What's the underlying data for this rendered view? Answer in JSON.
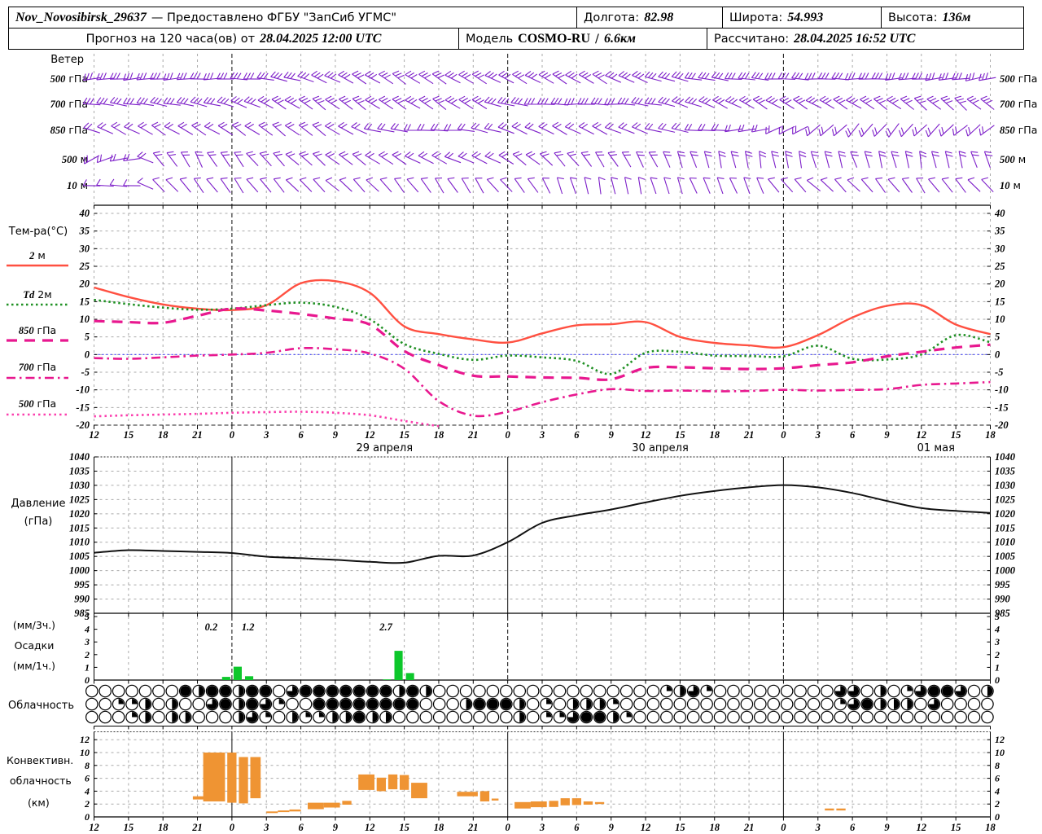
{
  "header": {
    "station": "Nov_Novosibirsk_29637",
    "provider": "— Предоставлено ФГБУ \"ЗапСиб УГМС\"",
    "lon_label": "Долгота:",
    "lon": "82.98",
    "lat_label": "Широта:",
    "lat": "54.993",
    "alt_label": "Высота:",
    "alt": "136м",
    "forecast_label": "Прогноз на 120 часа(ов) от",
    "forecast_time": "28.04.2025 12:00 UTC",
    "model_label": "Модель",
    "model_name": "COSMO-RU",
    "model_sep": "/",
    "model_res": "6.6км",
    "calc_label": "Рассчитано:",
    "calc_time": "28.04.2025 16:52 UTC"
  },
  "axis": {
    "hour_ticks": [
      "12",
      "15",
      "18",
      "21",
      "0",
      "3",
      "6",
      "9",
      "12",
      "15",
      "18",
      "21",
      "0",
      "3",
      "6",
      "9",
      "12",
      "15",
      "18",
      "21",
      "0",
      "3",
      "6",
      "9",
      "12",
      "15",
      "18"
    ],
    "date_labels": [
      {
        "text": "29 апреля",
        "tick": 8
      },
      {
        "text": "30 апреля",
        "tick": 16
      },
      {
        "text": "01 мая",
        "tick": 24
      }
    ]
  },
  "wind": {
    "title": "Ветер",
    "color": "#7d1fc9",
    "levels": [
      {
        "label": "500 гПа",
        "y": 97,
        "feathers": 3,
        "angles": [
          -5,
          -5,
          -5,
          -3,
          0,
          8,
          18,
          28,
          32,
          35,
          32,
          30,
          28,
          30,
          32,
          28,
          20,
          12,
          8,
          5,
          3,
          2,
          0,
          -3,
          -5,
          -8,
          -10
        ]
      },
      {
        "label": "700 гПа",
        "y": 128,
        "feathers": 3,
        "angles": [
          8,
          8,
          10,
          12,
          18,
          28,
          35,
          38,
          35,
          32,
          35,
          32,
          10,
          2,
          0,
          2,
          8,
          18,
          25,
          30,
          32,
          30,
          32,
          36,
          40,
          42,
          38
        ]
      },
      {
        "label": "850 гПа",
        "y": 160,
        "feathers": 2,
        "angles": [
          22,
          28,
          32,
          30,
          33,
          36,
          38,
          34,
          15,
          5,
          0,
          10,
          22,
          26,
          28,
          24,
          18,
          10,
          0,
          -10,
          -25,
          -38,
          -48,
          -50,
          -46,
          -42,
          -36
        ]
      },
      {
        "label": "500 м",
        "y": 196,
        "feathers": 2,
        "angles": [
          -25,
          -10,
          55,
          62,
          55,
          47,
          42,
          38,
          35,
          30,
          26,
          22,
          32,
          42,
          52,
          58,
          62,
          70,
          76,
          80,
          80,
          76,
          72,
          76,
          80,
          76,
          70
        ]
      },
      {
        "label": "10 м",
        "y": 228,
        "feathers": 1,
        "angles": [
          5,
          0,
          48,
          52,
          56,
          50,
          46,
          42,
          46,
          52,
          56,
          60,
          45,
          62,
          76,
          80,
          76,
          70,
          66,
          70,
          48,
          42,
          46,
          52,
          56,
          50,
          46
        ]
      }
    ]
  },
  "chart_data": [
    {
      "id": "temperature",
      "type": "line",
      "title": "Тем-ра(°C)",
      "ylim": [
        -20,
        40
      ],
      "ytick": 5,
      "zero_line_color": "#3a3aff",
      "x_hours": [
        0,
        3,
        6,
        9,
        12,
        15,
        18,
        21,
        24,
        27,
        30,
        33,
        36,
        39,
        42,
        45,
        48,
        51,
        54,
        57,
        60,
        63,
        66,
        69,
        72,
        75,
        78
      ],
      "series": [
        {
          "name": "2м",
          "color": "#ff5041",
          "style": "solid",
          "width": 2.4,
          "values": [
            19,
            16.3,
            14.2,
            13,
            12.6,
            14,
            20.2,
            20.8,
            17.5,
            8,
            5.8,
            4.3,
            3.4,
            6,
            8.3,
            8.6,
            9.2,
            5,
            3.3,
            2.6,
            2.1,
            5.5,
            10.5,
            13.8,
            14,
            8.5,
            5.8
          ]
        },
        {
          "name": "Td 2м",
          "color": "#1f9023",
          "style": "dotted",
          "width": 2.6,
          "values": [
            15.5,
            14.3,
            13.3,
            12.7,
            13,
            14,
            14.7,
            13.5,
            10,
            3,
            0.2,
            -1.5,
            -0.3,
            -0.8,
            -1.8,
            -5.5,
            0.5,
            0.8,
            -0.3,
            -0.4,
            -0.5,
            2.5,
            -1.2,
            -1.4,
            0,
            5.5,
            3.5
          ]
        },
        {
          "name": "850 гПа",
          "color": "#e8188f",
          "style": "longdash",
          "width": 3.2,
          "values": [
            9.5,
            9.2,
            9,
            11,
            13,
            12.5,
            11.5,
            10.2,
            8.5,
            1,
            -3,
            -6,
            -6.2,
            -6.5,
            -6.6,
            -7,
            -3.8,
            -3.6,
            -3.9,
            -4.1,
            -3.9,
            -3,
            -2.2,
            -0.5,
            0.8,
            2,
            2.8
          ]
        },
        {
          "name": "700 гПа",
          "color": "#e8188f",
          "style": "dashdot",
          "width": 2.6,
          "values": [
            -1,
            -1.2,
            -0.8,
            -0.3,
            0,
            0.5,
            1.8,
            1.5,
            0.3,
            -4,
            -13.2,
            -17.3,
            -16.2,
            -13.5,
            -11.3,
            -9.8,
            -10.3,
            -10.2,
            -10.4,
            -10.3,
            -10,
            -10.2,
            -10,
            -9.8,
            -8.6,
            -8.2,
            -7.8
          ]
        },
        {
          "name": "500 гПа",
          "color": "#fb3fae",
          "style": "finedot",
          "width": 2.6,
          "values": [
            -17.5,
            -17.2,
            -17,
            -16.8,
            -16.5,
            -16.3,
            -16.2,
            -16.5,
            -17.2,
            -18.8,
            -20.3,
            null,
            null,
            null,
            null,
            null,
            null,
            null,
            null,
            null,
            null,
            null,
            null,
            null,
            null,
            null,
            null
          ]
        }
      ]
    },
    {
      "id": "pressure",
      "type": "line",
      "title": "Давление",
      "units": "(гПа)",
      "ylim": [
        985,
        1040
      ],
      "ytick": 5,
      "x_hours": [
        0,
        3,
        6,
        9,
        12,
        15,
        18,
        21,
        24,
        27,
        30,
        33,
        36,
        39,
        42,
        45,
        48,
        51,
        54,
        57,
        60,
        63,
        66,
        69,
        72,
        75,
        78
      ],
      "series": [
        {
          "name": "Давление",
          "color": "#111111",
          "style": "solid",
          "width": 2,
          "values": [
            1006.3,
            1007.2,
            1006.9,
            1006.6,
            1006.2,
            1004.9,
            1004.4,
            1003.8,
            1003.1,
            1002.8,
            1005.2,
            1005.3,
            1010,
            1016.8,
            1019.5,
            1021.5,
            1024,
            1026.3,
            1028,
            1029.3,
            1030.1,
            1029.3,
            1027.3,
            1024.5,
            1022,
            1021,
            1020.3
          ]
        }
      ]
    },
    {
      "id": "precipitation",
      "type": "bar",
      "labels_left": [
        "(мм/3ч.)",
        "Осадки",
        "(мм/1ч.)"
      ],
      "ylim": [
        0,
        5
      ],
      "ytick": 1,
      "color": "#0dc72b",
      "bars": [
        {
          "h": 11,
          "v": 0.25
        },
        {
          "h": 12,
          "v": 1.05
        },
        {
          "h": 13,
          "v": 0.3
        },
        {
          "h": 25,
          "v": 0.05
        },
        {
          "h": 26,
          "v": 2.3
        },
        {
          "h": 27,
          "v": 0.55
        }
      ],
      "annotations": [
        {
          "text": "0.2",
          "t": 10.2
        },
        {
          "text": "1.2",
          "t": 13.4
        },
        {
          "text": "2.7",
          "t": 25.4
        }
      ]
    },
    {
      "id": "convective",
      "type": "bar",
      "labels_left": [
        "Конвективн.",
        "облачность",
        "(км)"
      ],
      "ylim": [
        0,
        12
      ],
      "ytick": 2,
      "color": "#ef9433",
      "blocks": [
        [
          8.6,
          9.6,
          2.7,
          3.2
        ],
        [
          9.5,
          11.4,
          2.4,
          10
        ],
        [
          11.6,
          12.4,
          2.2,
          10
        ],
        [
          12.6,
          13.4,
          2.1,
          9.3
        ],
        [
          13.6,
          14.5,
          2.9,
          9.3
        ],
        [
          15,
          16,
          0.6,
          0.85
        ],
        [
          16,
          17,
          0.75,
          1
        ],
        [
          17,
          18,
          0.85,
          1.15
        ],
        [
          18.6,
          20,
          1.2,
          2.2
        ],
        [
          20,
          21.4,
          1.45,
          2.2
        ],
        [
          21.6,
          22.4,
          1.9,
          2.5
        ],
        [
          23,
          24.4,
          4.2,
          6.6
        ],
        [
          24.6,
          25.4,
          4,
          6.1
        ],
        [
          25.6,
          26.4,
          4.3,
          6.6
        ],
        [
          26.6,
          27.4,
          4.2,
          6.5
        ],
        [
          27.6,
          29,
          2.9,
          5.3
        ],
        [
          31.6,
          33.4,
          3.2,
          3.9
        ],
        [
          33.6,
          34.4,
          2.4,
          4
        ],
        [
          34.6,
          35.2,
          2.55,
          2.85
        ],
        [
          36.6,
          38,
          1.3,
          2.3
        ],
        [
          38,
          39.4,
          1.5,
          2.4
        ],
        [
          39.6,
          40.4,
          1.55,
          2.5
        ],
        [
          40.6,
          41.4,
          1.8,
          2.9
        ],
        [
          41.6,
          42.4,
          1.85,
          2.9
        ],
        [
          42.6,
          43.4,
          1.9,
          2.4
        ],
        [
          43.6,
          44.4,
          2,
          2.3
        ],
        [
          63.6,
          64.4,
          1,
          1.3
        ],
        [
          64.6,
          65.4,
          1,
          1.3
        ]
      ]
    }
  ],
  "clouds": {
    "label": "Облачность",
    "rows": [
      [
        0,
        0,
        0,
        0,
        0,
        0,
        0,
        1,
        0.5,
        1,
        1,
        0.5,
        1,
        1,
        0,
        0.75,
        1,
        1,
        1,
        1,
        1,
        1,
        1,
        0.5,
        1,
        0.5,
        0,
        0,
        0,
        0,
        0,
        0,
        0,
        0,
        0,
        0,
        0,
        0,
        0,
        0,
        0,
        0,
        0,
        0.25,
        0.5,
        0.75,
        0.25,
        0,
        0,
        0,
        0,
        0,
        0,
        0,
        0,
        0,
        0.75,
        0.75,
        0,
        0.5,
        0,
        0.25,
        0.75,
        1,
        1,
        0.75,
        0,
        0.5
      ],
      [
        0,
        0,
        0.25,
        0.25,
        0.5,
        0,
        0.5,
        0,
        0,
        0.75,
        1,
        0.5,
        1,
        0.75,
        0.25,
        0,
        0,
        1,
        1,
        1,
        1,
        1,
        1,
        1,
        1,
        0,
        0,
        0,
        0.5,
        1,
        1,
        1,
        0.5,
        0,
        0.25,
        0,
        0.5,
        0.5,
        0.5,
        0.25,
        0,
        0,
        0,
        0,
        0,
        0,
        0,
        0,
        0,
        0,
        0,
        0,
        0,
        0,
        0,
        0,
        0.25,
        0.75,
        1,
        0.5,
        0.5,
        0.5,
        0,
        0.75,
        0,
        0,
        0,
        0
      ],
      [
        0,
        0,
        0,
        0.25,
        0.5,
        0,
        0.5,
        0.5,
        0,
        0,
        0,
        0.5,
        0.75,
        0.25,
        0,
        0.5,
        0.25,
        0.25,
        0.5,
        0.5,
        1,
        0.5,
        0.5,
        0,
        0,
        0,
        0,
        0,
        0,
        0,
        0,
        0,
        0.5,
        0,
        0.25,
        0.25,
        0.75,
        1,
        1,
        0.5,
        0.25,
        0,
        0,
        0,
        0,
        0,
        0,
        0,
        0,
        0,
        0,
        0,
        0,
        0,
        0,
        0,
        0,
        0,
        0,
        0,
        0,
        0,
        0,
        0,
        0,
        0,
        0,
        0
      ]
    ]
  }
}
